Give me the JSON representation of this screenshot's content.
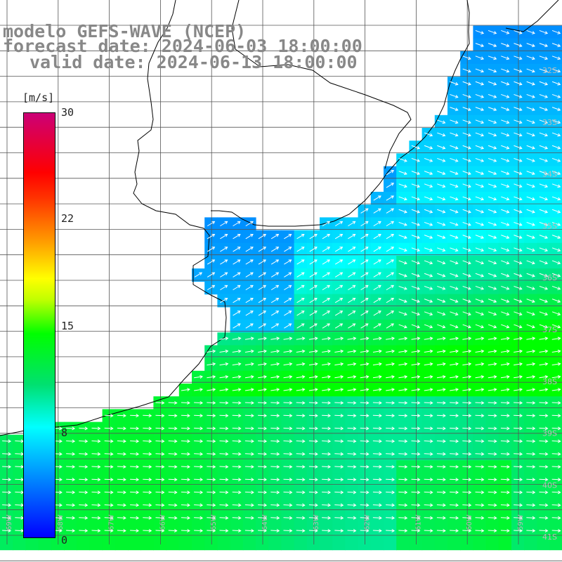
{
  "title": {
    "line1": "modelo GEFS-WAVE (NCEP)",
    "line2": "forecast date: 2024-06-03 18:00:00",
    "line3": "valid date: 2024-06-13 18:00:00"
  },
  "colorbar": {
    "unit": "[m/s]",
    "ticks": [
      "30",
      "22",
      "15",
      "8",
      "0"
    ],
    "colors": [
      "#0000ff",
      "#0080ff",
      "#00ffff",
      "#00ff00",
      "#ffff00",
      "#ff9900",
      "#ff0000",
      "#cc0077"
    ]
  },
  "grid": {
    "lat_labels": [
      "32S",
      "33S",
      "34S",
      "35S",
      "36S",
      "37S",
      "38S",
      "39S",
      "40S",
      "41S"
    ],
    "lon_labels": [
      "69W",
      "68W",
      "67W",
      "66W",
      "65W",
      "64W",
      "63W",
      "62W",
      "61W",
      "60W",
      "59W"
    ]
  },
  "map": {
    "variable": "wind speed",
    "land_color": "#ffffff",
    "coast_color": "#000000",
    "arrow_color": "#ffffff"
  }
}
